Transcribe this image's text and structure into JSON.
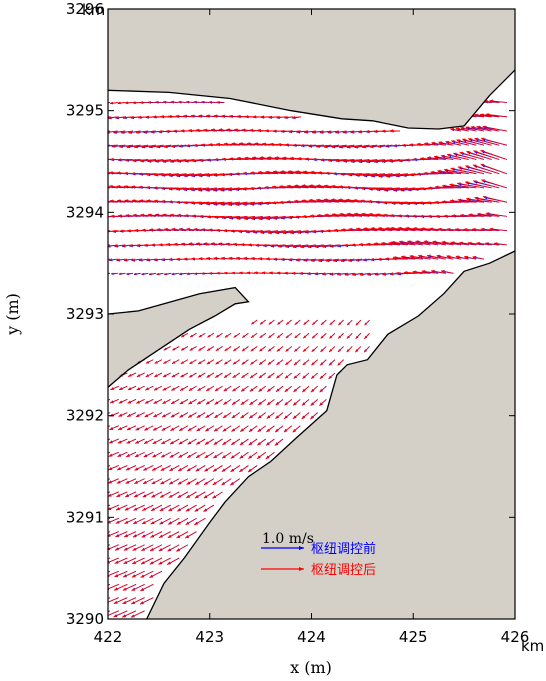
{
  "chart_data": {
    "type": "scatter",
    "plot_kind": "velocity-vector field (quiver) over river channel",
    "xlabel": "x (m)",
    "ylabel": "y (m)",
    "x_unit_label": "km",
    "y_unit_label": "km",
    "xlim": [
      422,
      426
    ],
    "ylim": [
      3290,
      3296
    ],
    "x_ticks": [
      "422",
      "423",
      "424",
      "425",
      "426"
    ],
    "y_ticks": [
      "3290",
      "3291",
      "3292",
      "3293",
      "3294",
      "3295",
      "3296"
    ],
    "grid": false,
    "land_color": "#d4d0c8",
    "water_color": "#ffffff",
    "scale_vector": {
      "label": "1.0 m/s",
      "speed": 1.0
    },
    "series": [
      {
        "name": "枢纽调控前",
        "color": "#0000ff"
      },
      {
        "name": "枢纽调控后",
        "color": "#ff0000"
      }
    ],
    "legend_position": "bottom-center",
    "channel_boundaries": {
      "north_bank": [
        [
          422.0,
          3295.2
        ],
        [
          422.6,
          3295.18
        ],
        [
          423.2,
          3295.12
        ],
        [
          423.8,
          3295.0
        ],
        [
          424.3,
          3294.92
        ],
        [
          424.6,
          3294.9
        ],
        [
          424.95,
          3294.83
        ],
        [
          425.25,
          3294.82
        ],
        [
          425.5,
          3294.85
        ],
        [
          425.75,
          3295.15
        ],
        [
          426.0,
          3295.4
        ]
      ],
      "south_bank": [
        [
          426.0,
          3293.62
        ],
        [
          425.75,
          3293.5
        ],
        [
          425.5,
          3293.42
        ],
        [
          425.3,
          3293.2
        ],
        [
          425.05,
          3292.98
        ],
        [
          424.75,
          3292.8
        ],
        [
          424.55,
          3292.55
        ],
        [
          424.35,
          3292.5
        ],
        [
          424.25,
          3292.4
        ],
        [
          424.15,
          3292.05
        ],
        [
          423.85,
          3291.78
        ],
        [
          423.6,
          3291.55
        ],
        [
          423.38,
          3291.4
        ],
        [
          423.15,
          3291.15
        ],
        [
          423.0,
          3290.95
        ],
        [
          422.75,
          3290.6
        ],
        [
          422.55,
          3290.35
        ],
        [
          422.38,
          3290.0
        ]
      ],
      "island_edge": [
        [
          422.0,
          3292.28
        ],
        [
          422.2,
          3292.45
        ],
        [
          422.5,
          3292.65
        ],
        [
          422.8,
          3292.85
        ],
        [
          423.05,
          3292.98
        ],
        [
          423.25,
          3293.1
        ],
        [
          423.38,
          3293.12
        ],
        [
          423.25,
          3293.26
        ],
        [
          422.9,
          3293.2
        ],
        [
          422.55,
          3293.1
        ],
        [
          422.3,
          3293.03
        ],
        [
          422.0,
          3293.0
        ]
      ]
    },
    "flow_summary": {
      "upper_channel": {
        "y_range": [
          3293.4,
          3295.1
        ],
        "direction": "westward",
        "max_speed_mps": 1.2
      },
      "lower_channel": {
        "y_range": [
          3290.0,
          3293.0
        ],
        "direction": "south-westward",
        "max_speed_mps": 0.6
      }
    }
  }
}
